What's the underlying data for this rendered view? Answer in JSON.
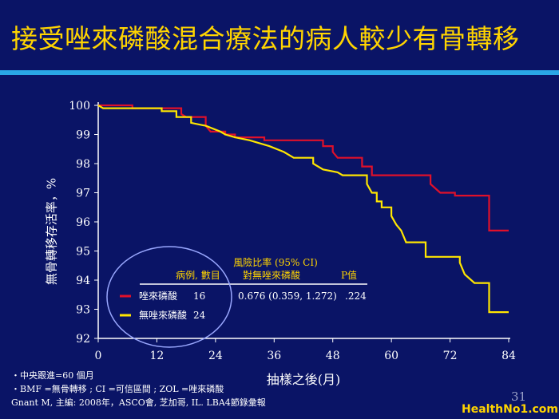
{
  "slide": {
    "title": "接受唑來磷酸混合療法的病人較少有骨轉移",
    "page_number": "31",
    "watermark": "HealthNo1.com",
    "notes": [
      "・中央跟進=60 個月",
      "・BMF =無骨轉移 ; CI =可信區間 ; ZOL =唑來磷酸",
      "Gnant M, 主編: 2008年，ASCO會, 芝加哥, IL. LBA4節錄彙報"
    ]
  },
  "colors": {
    "background": "#0a1466",
    "accent_rule": "#2aa7e6",
    "title": "#ffd400",
    "zol": "#e0102a",
    "no_zol": "#ffe600"
  },
  "chart_data": {
    "type": "line",
    "xlabel": "抽樣之後(月)",
    "ylabel": "無骨轉移存活率，%",
    "xlim": [
      0,
      84
    ],
    "ylim": [
      92,
      100
    ],
    "xticks": [
      0,
      12,
      24,
      36,
      48,
      60,
      72,
      84
    ],
    "yticks": [
      92,
      93,
      94,
      95,
      96,
      97,
      98,
      99,
      100
    ],
    "series": [
      {
        "name": "唑來磷酸",
        "color": "#e0102a",
        "points": [
          [
            0,
            100
          ],
          [
            7,
            100
          ],
          [
            7,
            99.9
          ],
          [
            17,
            99.9
          ],
          [
            17,
            99.7
          ],
          [
            18,
            99.6
          ],
          [
            22,
            99.6
          ],
          [
            22,
            99.3
          ],
          [
            23,
            99.1
          ],
          [
            26,
            99.1
          ],
          [
            26,
            99.0
          ],
          [
            28,
            99.0
          ],
          [
            28,
            98.9
          ],
          [
            34,
            98.9
          ],
          [
            34,
            98.8
          ],
          [
            46,
            98.8
          ],
          [
            46,
            98.6
          ],
          [
            48,
            98.6
          ],
          [
            48,
            98.4
          ],
          [
            49,
            98.2
          ],
          [
            54,
            98.2
          ],
          [
            54,
            97.9
          ],
          [
            56,
            97.9
          ],
          [
            56,
            97.6
          ],
          [
            68,
            97.6
          ],
          [
            68,
            97.3
          ],
          [
            70,
            97.0
          ],
          [
            73,
            97.0
          ],
          [
            73,
            96.9
          ],
          [
            80,
            96.9
          ],
          [
            80,
            95.7
          ],
          [
            84,
            95.7
          ]
        ]
      },
      {
        "name": "無唑來磷酸",
        "color": "#ffe600",
        "points": [
          [
            0,
            100
          ],
          [
            1,
            99.9
          ],
          [
            13,
            99.9
          ],
          [
            13,
            99.8
          ],
          [
            16,
            99.8
          ],
          [
            16,
            99.6
          ],
          [
            19,
            99.6
          ],
          [
            19,
            99.4
          ],
          [
            22,
            99.3
          ],
          [
            25,
            99.1
          ],
          [
            26,
            99.0
          ],
          [
            28,
            98.9
          ],
          [
            31,
            98.8
          ],
          [
            33,
            98.7
          ],
          [
            35,
            98.6
          ],
          [
            38,
            98.4
          ],
          [
            40,
            98.2
          ],
          [
            44,
            98.2
          ],
          [
            44,
            98.0
          ],
          [
            46,
            97.8
          ],
          [
            49,
            97.7
          ],
          [
            50,
            97.6
          ],
          [
            55,
            97.6
          ],
          [
            55,
            97.3
          ],
          [
            56,
            97.0
          ],
          [
            57,
            97.0
          ],
          [
            57,
            96.7
          ],
          [
            58,
            96.7
          ],
          [
            58,
            96.5
          ],
          [
            60,
            96.5
          ],
          [
            60,
            96.2
          ],
          [
            61,
            95.9
          ],
          [
            62,
            95.7
          ],
          [
            63,
            95.3
          ],
          [
            67,
            95.3
          ],
          [
            67,
            94.8
          ],
          [
            74,
            94.8
          ],
          [
            74,
            94.6
          ],
          [
            75,
            94.2
          ],
          [
            77,
            93.9
          ],
          [
            80,
            93.9
          ],
          [
            80,
            92.9
          ],
          [
            84,
            92.9
          ]
        ]
      }
    ],
    "hr_table": {
      "header_line1": "風險比率 (95% CI)",
      "col_events": "病例, 數目",
      "col_hr": "對無唑來磷酸",
      "col_p": "P值",
      "rows": [
        {
          "label": "唑來磷酸",
          "events": "16",
          "hr": "0.676 (0.359, 1.272)",
          "p": ".224",
          "color": "#e0102a"
        },
        {
          "label": "無唑來磷酸",
          "events": "24",
          "hr": "",
          "p": "",
          "color": "#ffe600"
        }
      ]
    }
  }
}
